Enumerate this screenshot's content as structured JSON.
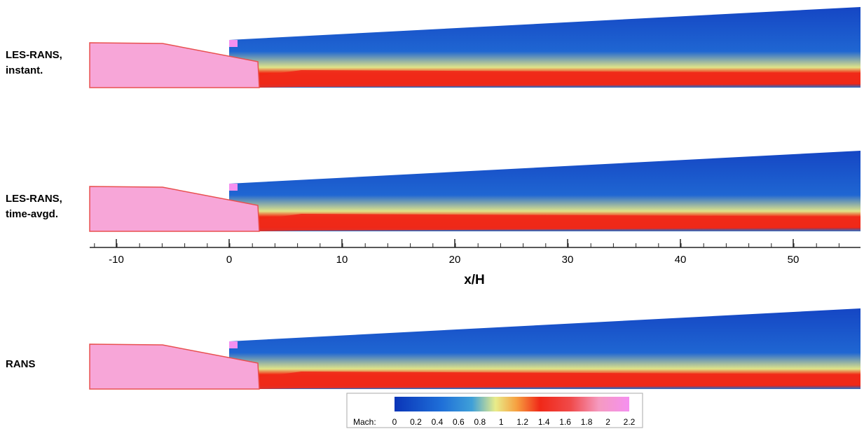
{
  "panels": [
    {
      "label": [
        "LES-RANS,",
        "instant."
      ]
    },
    {
      "label": [
        "LES-RANS,",
        "time-avgd."
      ]
    },
    {
      "label": [
        "RANS"
      ]
    }
  ],
  "axis": {
    "label": "x/H",
    "ticks": [
      -10,
      0,
      10,
      20,
      30,
      40,
      50
    ]
  },
  "colorbar": {
    "label": "Mach:",
    "ticks": [
      0,
      0.2,
      0.4,
      0.6,
      0.8,
      1,
      1.2,
      1.4,
      1.6,
      1.8,
      2,
      2.2
    ]
  }
}
